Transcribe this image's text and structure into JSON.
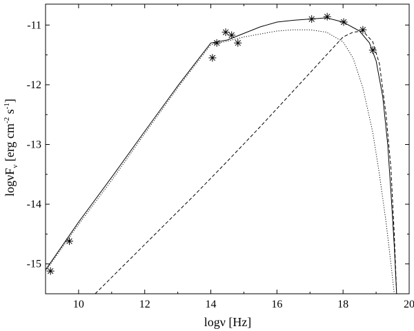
{
  "chart_data": {
    "type": "line",
    "title": "",
    "xlabel": {
      "main": "logν [Hz]"
    },
    "ylabel": {
      "main": "logνF",
      "sub": "ν",
      "unit_left": "[erg cm",
      "unit_exp1": "-2",
      "unit_mid": "s",
      "unit_exp2": "-1",
      "unit_right": "]"
    },
    "xlim": [
      9,
      20
    ],
    "ylim": [
      -15.5,
      -10.65
    ],
    "x_ticks": [
      10,
      12,
      14,
      16,
      18,
      20
    ],
    "y_ticks": [
      -15,
      -14,
      -13,
      -12,
      -11
    ],
    "grid": false,
    "legend": "none",
    "points": {
      "marker": "asterisk",
      "x": [
        9.15,
        9.72,
        14.05,
        14.18,
        14.45,
        14.63,
        14.82,
        17.05,
        17.52,
        18.02,
        18.6,
        18.9
      ],
      "y": [
        -15.12,
        -14.62,
        -11.55,
        -11.3,
        -11.12,
        -11.17,
        -11.3,
        -10.9,
        -10.86,
        -10.95,
        -11.08,
        -11.42
      ]
    },
    "series": [
      {
        "style": "solid",
        "x": [
          9.0,
          10.0,
          11.0,
          12.0,
          13.0,
          14.0,
          14.5,
          15.0,
          15.5,
          16.0,
          16.5,
          17.0,
          17.5,
          18.0,
          18.5,
          18.8,
          19.0,
          19.2,
          19.35,
          19.45,
          19.55,
          19.62
        ],
        "y": [
          -15.1,
          -14.3,
          -13.55,
          -12.78,
          -12.02,
          -11.3,
          -11.25,
          -11.14,
          -11.03,
          -10.95,
          -10.92,
          -10.9,
          -10.88,
          -10.95,
          -11.1,
          -11.3,
          -11.6,
          -12.2,
          -13.0,
          -13.8,
          -14.7,
          -15.5
        ]
      },
      {
        "style": "dotted",
        "x": [
          9.0,
          10.0,
          11.0,
          12.0,
          13.0,
          14.0,
          14.5,
          15.0,
          15.5,
          16.0,
          16.5,
          17.0,
          17.5,
          18.0,
          18.3,
          18.6,
          18.9,
          19.1,
          19.3,
          19.45,
          19.55
        ],
        "y": [
          -15.12,
          -14.34,
          -13.6,
          -12.82,
          -12.05,
          -11.33,
          -11.27,
          -11.2,
          -11.15,
          -11.1,
          -11.08,
          -11.08,
          -11.12,
          -11.28,
          -11.55,
          -12.05,
          -12.8,
          -13.5,
          -14.3,
          -15.0,
          -15.5
        ]
      },
      {
        "style": "dashed",
        "x": [
          10.5,
          11.5,
          12.5,
          13.5,
          14.5,
          15.5,
          16.5,
          17.0,
          17.5,
          18.0,
          18.3,
          18.6,
          18.9,
          19.1,
          19.3,
          19.45,
          19.55,
          19.62
        ],
        "y": [
          -15.5,
          -14.95,
          -14.4,
          -13.85,
          -13.28,
          -12.7,
          -12.1,
          -11.8,
          -11.5,
          -11.2,
          -11.12,
          -11.1,
          -11.28,
          -11.65,
          -12.5,
          -13.4,
          -14.5,
          -15.5
        ]
      }
    ]
  }
}
